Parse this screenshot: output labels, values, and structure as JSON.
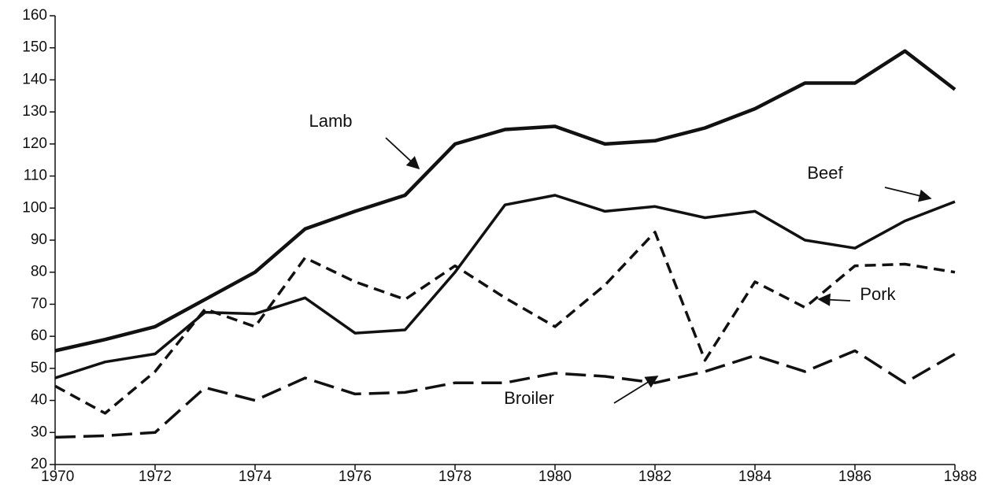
{
  "chart_data": {
    "type": "line",
    "x": [
      1970,
      1971,
      1972,
      1973,
      1974,
      1975,
      1976,
      1977,
      1978,
      1979,
      1980,
      1981,
      1982,
      1983,
      1984,
      1985,
      1986,
      1987,
      1988
    ],
    "series": [
      {
        "name": "Lamb",
        "color": "#111111",
        "style": "solid-thick",
        "values": [
          55.5,
          59,
          63,
          71.5,
          80,
          93.5,
          99,
          104,
          120,
          124.5,
          125.5,
          120,
          121,
          125,
          131,
          139,
          139,
          149,
          137
        ]
      },
      {
        "name": "Beef",
        "color": "#111111",
        "style": "solid",
        "values": [
          47,
          52,
          54.5,
          67.5,
          67,
          72,
          61,
          62,
          80,
          101,
          104,
          99,
          100.5,
          97,
          99,
          90,
          87.5,
          96,
          102
        ]
      },
      {
        "name": "Pork",
        "color": "#111111",
        "style": "dashed",
        "values": [
          44.5,
          36,
          49,
          68.5,
          63,
          84.5,
          77,
          71.5,
          82,
          72,
          63,
          76,
          92.5,
          52.5,
          77,
          69,
          82,
          82.5,
          80
        ]
      },
      {
        "name": "Broiler",
        "color": "#111111",
        "style": "long-dashed",
        "values": [
          28.5,
          29,
          30,
          44,
          40,
          47,
          42,
          42.5,
          45.5,
          45.5,
          48.5,
          47.5,
          45.5,
          49,
          54,
          49,
          55.5,
          45.5,
          54.5
        ]
      }
    ],
    "xlim": [
      1970,
      1988
    ],
    "xticks": [
      1970,
      1972,
      1974,
      1976,
      1978,
      1980,
      1982,
      1984,
      1986,
      1988
    ],
    "ylim": [
      20,
      160
    ],
    "yticks": [
      20,
      30,
      40,
      50,
      60,
      70,
      80,
      90,
      100,
      110,
      120,
      130,
      140,
      150,
      160
    ],
    "grid": false
  }
}
